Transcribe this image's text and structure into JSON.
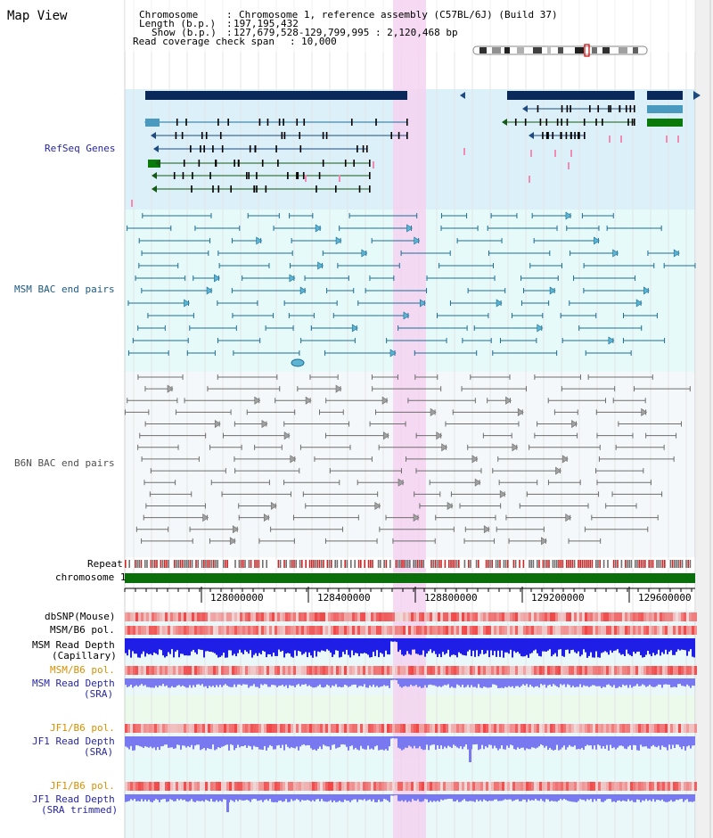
{
  "view_title": "Map View",
  "info": {
    "chromosome_label": "Chromosome",
    "chromosome_value": "Chromosome 1, reference assembly (C57BL/6J) (Build 37)",
    "length_label": "Length (b.p.)",
    "length_value": "197,195,432",
    "show_label": "Show (b.p.)",
    "show_value": "127,679,528-129,799,995 : 2,120,468 bp",
    "coverage_label": "Read coverage check span",
    "coverage_value": "10,000"
  },
  "tracks": {
    "refseq": "RefSeq Genes",
    "msm_bac": "MSM BAC end pairs",
    "b6n_bac": "B6N BAC end pairs",
    "repeat": "Repeat",
    "chromosome": "chromosome 1",
    "dbsnp": "dbSNP(Mouse)",
    "msm_b6_pol": "MSM/B6 pol.",
    "msm_read_depth_cap_1": "MSM Read Depth",
    "msm_read_depth_cap_2": "(Capillary)",
    "msm_b6_pol_sra": "MSM/B6 pol.",
    "msm_read_depth_sra_1": "MSM Read Depth",
    "msm_read_depth_sra_2": "(SRA)",
    "jf1_b6_pol": "JF1/B6 pol.",
    "jf1_read_depth_1": "JF1 Read Depth",
    "jf1_read_depth_2": "(SRA)",
    "jf1_b6_pol_trim": "JF1/B6 pol.",
    "jf1_read_depth_trim_1": "JF1 Read Depth",
    "jf1_read_depth_trim_2": "(SRA trimmed)"
  },
  "axis_ticks": [
    "128000000",
    "128400000",
    "128800000",
    "129200000",
    "129600000"
  ],
  "colors": {
    "refseq_bg": "#dcf0fa",
    "msm_bg": "#e6fafa",
    "b6n_bg": "#f5f8fa",
    "highlight": "#f5d2f0",
    "dark_navy": "#0a285a",
    "msm_line": "#1e6e96",
    "b6n_line": "#6e6e6e",
    "gene_green": "#145a14",
    "chrom_green": "#0a6e0a",
    "depth_blue": "#1e1ee6",
    "depth_sra": "#7878f0",
    "label_blue": "#2828a0",
    "label_orange": "#d89000"
  }
}
